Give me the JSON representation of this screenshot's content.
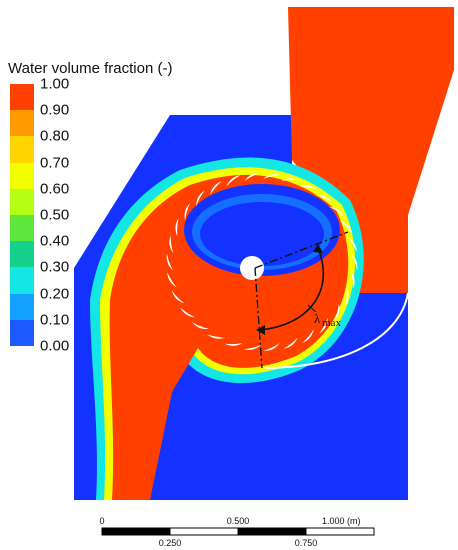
{
  "legend": {
    "title": "Water volume fraction (-)",
    "entries": [
      {
        "label": "1.00",
        "color": "#ff4000"
      },
      {
        "label": "0.90",
        "color": "#ff9a00"
      },
      {
        "label": "0.80",
        "color": "#ffd400"
      },
      {
        "label": "0.70",
        "color": "#f2ff00"
      },
      {
        "label": "0.60",
        "color": "#b4ff14"
      },
      {
        "label": "0.50",
        "color": "#5fe63c"
      },
      {
        "label": "0.40",
        "color": "#14d28c"
      },
      {
        "label": "0.30",
        "color": "#14e6e6"
      },
      {
        "label": "0.20",
        "color": "#14a0ff"
      },
      {
        "label": "0.10",
        "color": "#1e5aff"
      },
      {
        "label": "0.00",
        "color": "#1432ff"
      }
    ]
  },
  "scale_bar": {
    "top_labels": [
      "0",
      "0.500",
      "1.000 (m)"
    ],
    "bottom_labels": [
      "0.250",
      "0.750"
    ]
  },
  "annotation": {
    "symbol": "λ",
    "subscript": "max"
  },
  "colors": {
    "water": "#ff4000",
    "air": "#1432ff",
    "blade": "#ffffff"
  }
}
